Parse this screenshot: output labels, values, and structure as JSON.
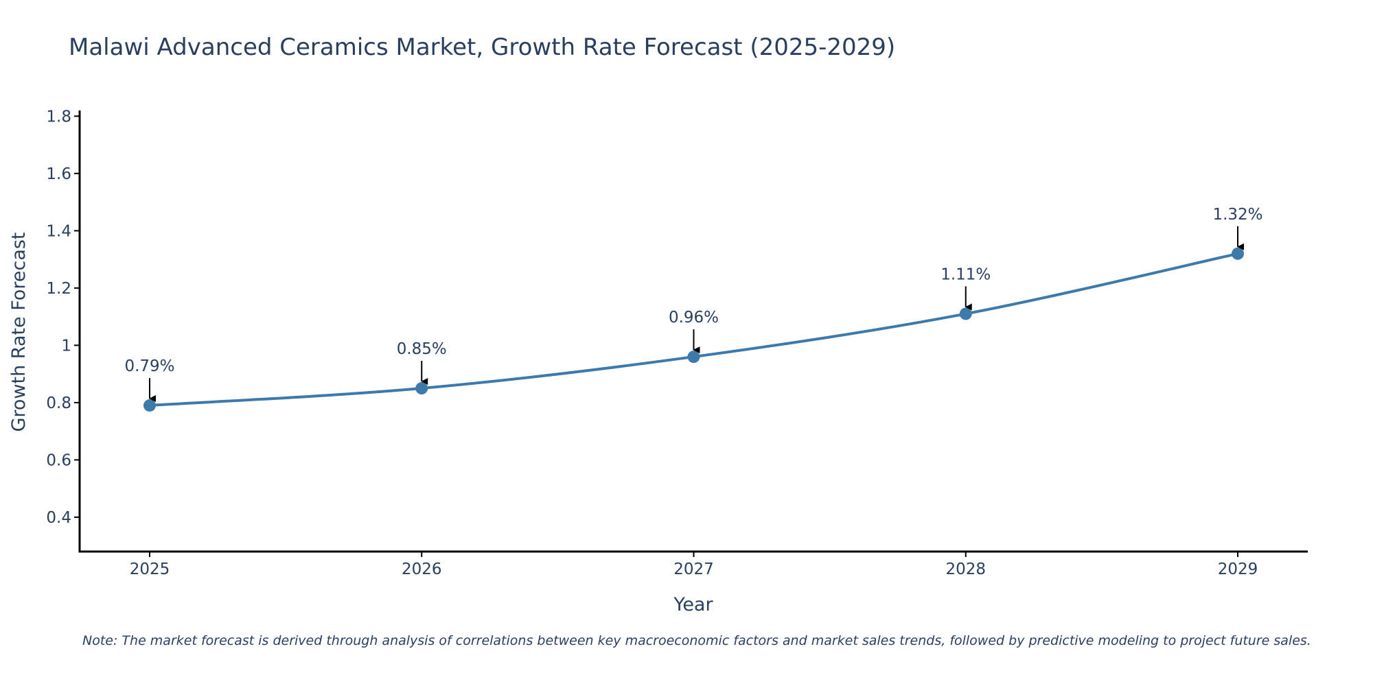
{
  "chart_data": {
    "type": "line",
    "title": "Malawi Advanced Ceramics Market, Growth Rate Forecast (2025-2029)",
    "xlabel": "Year",
    "ylabel": "Growth Rate Forecast",
    "categories": [
      "2025",
      "2026",
      "2027",
      "2028",
      "2029"
    ],
    "series": [
      {
        "name": "Growth Rate Forecast",
        "values": [
          0.79,
          0.85,
          0.96,
          1.11,
          1.32
        ],
        "labels": [
          "0.79%",
          "0.85%",
          "0.96%",
          "1.11%",
          "1.32%"
        ],
        "color": "#3d7aac"
      }
    ],
    "ylim": [
      0.28,
      1.82
    ],
    "yticks": [
      0.4,
      0.6,
      0.8,
      1,
      1.2,
      1.4,
      1.6,
      1.8
    ],
    "ytick_labels": [
      "0.4",
      "0.6",
      "0.8",
      "1",
      "1.2",
      "1.4",
      "1.6",
      "1.8"
    ],
    "grid": false,
    "note": "Note: The market forecast is derived through analysis of correlations between key macroeconomic factors and market sales trends, followed by predictive modeling to project future sales."
  }
}
